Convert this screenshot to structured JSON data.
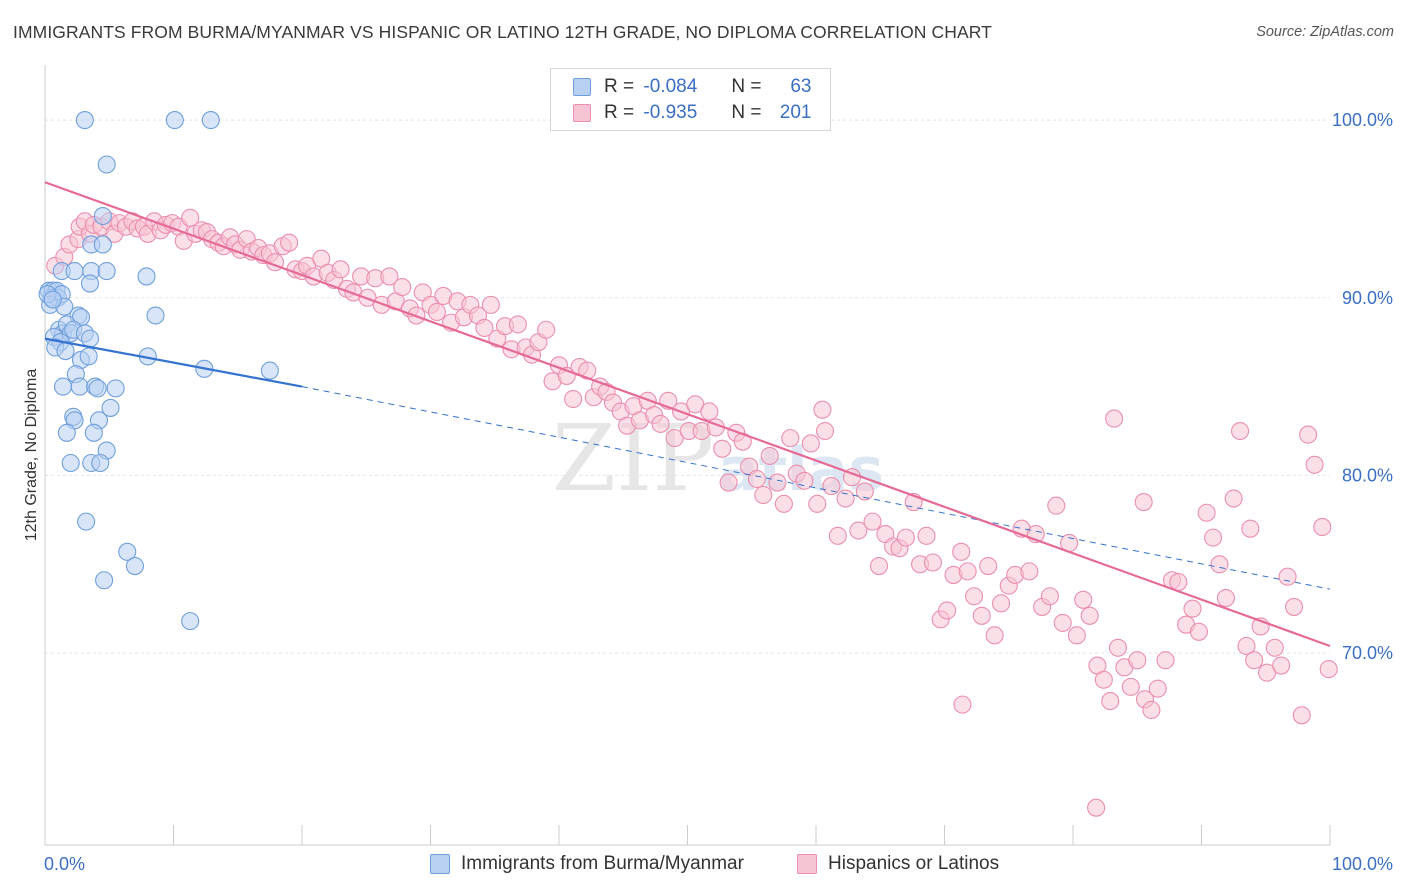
{
  "header": {
    "title": "IMMIGRANTS FROM BURMA/MYANMAR VS HISPANIC OR LATINO 12TH GRADE, NO DIPLOMA CORRELATION CHART",
    "source": "Source: ZipAtlas.com"
  },
  "legend_top": {
    "rows": [
      {
        "r_label": "R =",
        "r_value": "-0.084",
        "n_label": "N =",
        "n_value": "63"
      },
      {
        "r_label": "R =",
        "r_value": "-0.935",
        "n_label": "N =",
        "n_value": "201"
      }
    ]
  },
  "legend_bottom": {
    "items": [
      {
        "label": "Immigrants from Burma/Myanmar"
      },
      {
        "label": "Hispanics or Latinos"
      }
    ]
  },
  "watermark": {
    "part1": "ZIP",
    "part2": "atlas"
  },
  "colors": {
    "blue_fill": "#b8d0f2",
    "blue_stroke": "#6f9fdc",
    "blue_line": "#3473cf",
    "pink_fill": "#f7c4d4",
    "pink_stroke": "#ea8fae",
    "pink_line": "#e56a95",
    "tick_text": "#3b6fc4",
    "grid": "#e3e3e3"
  },
  "chart_data": {
    "type": "scatter",
    "title": "IMMIGRANTS FROM BURMA/MYANMAR VS HISPANIC OR LATINO 12TH GRADE, NO DIPLOMA CORRELATION CHART",
    "xlabel": "",
    "ylabel": "12th Grade, No Diploma",
    "xlim": [
      0,
      100
    ],
    "ylim": [
      59.2,
      103.1
    ],
    "x_tick_labels": [
      "0.0%",
      "100.0%"
    ],
    "y_ticks": [
      70,
      80,
      90,
      100
    ],
    "y_tick_labels": [
      "70.0%",
      "80.0%",
      "90.0%",
      "100.0%"
    ],
    "grid": true,
    "legend_position": "top-center",
    "series": [
      {
        "name": "Immigrants from Burma/Myanmar",
        "R": -0.084,
        "N": 63,
        "trend": {
          "x0": 0,
          "y0": 87.7,
          "x1": 20,
          "y1": 85.0,
          "dashed_to_x": 100,
          "dashed_to_y": 73.6
        },
        "points": [
          [
            3.1,
            100.0
          ],
          [
            10.1,
            100.0
          ],
          [
            12.9,
            100.0
          ],
          [
            4.8,
            97.5
          ],
          [
            4.5,
            94.6
          ],
          [
            3.6,
            93.0
          ],
          [
            4.5,
            93.0
          ],
          [
            1.3,
            91.5
          ],
          [
            2.3,
            91.5
          ],
          [
            3.6,
            91.5
          ],
          [
            4.8,
            91.5
          ],
          [
            3.5,
            90.8
          ],
          [
            7.9,
            91.2
          ],
          [
            0.3,
            90.4
          ],
          [
            0.6,
            90.4
          ],
          [
            0.9,
            90.4
          ],
          [
            0.5,
            90.0
          ],
          [
            1.0,
            90.0
          ],
          [
            1.3,
            90.2
          ],
          [
            0.4,
            89.6
          ],
          [
            1.5,
            89.5
          ],
          [
            8.6,
            89.0
          ],
          [
            2.6,
            89.0
          ],
          [
            2.8,
            88.9
          ],
          [
            1.1,
            88.2
          ],
          [
            1.4,
            88.0
          ],
          [
            1.7,
            88.5
          ],
          [
            2.0,
            88.0
          ],
          [
            2.2,
            88.2
          ],
          [
            3.1,
            88.0
          ],
          [
            0.7,
            87.8
          ],
          [
            1.2,
            87.5
          ],
          [
            3.5,
            87.7
          ],
          [
            0.8,
            87.2
          ],
          [
            1.6,
            87.0
          ],
          [
            2.8,
            86.5
          ],
          [
            3.4,
            86.7
          ],
          [
            8.0,
            86.7
          ],
          [
            12.4,
            86.0
          ],
          [
            17.5,
            85.9
          ],
          [
            2.4,
            85.7
          ],
          [
            1.4,
            85.0
          ],
          [
            2.7,
            85.0
          ],
          [
            3.9,
            85.0
          ],
          [
            4.1,
            84.9
          ],
          [
            5.5,
            84.9
          ],
          [
            5.1,
            83.8
          ],
          [
            2.2,
            83.3
          ],
          [
            2.3,
            83.1
          ],
          [
            4.2,
            83.1
          ],
          [
            1.7,
            82.4
          ],
          [
            3.8,
            82.4
          ],
          [
            4.8,
            81.4
          ],
          [
            2.0,
            80.7
          ],
          [
            3.6,
            80.7
          ],
          [
            4.3,
            80.7
          ],
          [
            3.2,
            77.4
          ],
          [
            6.4,
            75.7
          ],
          [
            7.0,
            74.9
          ],
          [
            4.6,
            74.1
          ],
          [
            11.3,
            71.8
          ],
          [
            0.2,
            90.2
          ],
          [
            0.6,
            89.9
          ]
        ]
      },
      {
        "name": "Hispanics or Latinos",
        "R": -0.935,
        "N": 201,
        "trend": {
          "x0": 0,
          "y0": 96.5,
          "x1": 100,
          "y1": 70.4
        },
        "points": [
          [
            0.8,
            91.8
          ],
          [
            1.5,
            92.3
          ],
          [
            1.9,
            93.0
          ],
          [
            2.6,
            93.3
          ],
          [
            2.7,
            94.0
          ],
          [
            3.1,
            94.3
          ],
          [
            3.5,
            93.6
          ],
          [
            3.8,
            94.1
          ],
          [
            4.4,
            94.0
          ],
          [
            5.0,
            94.3
          ],
          [
            5.4,
            93.6
          ],
          [
            5.8,
            94.2
          ],
          [
            6.3,
            94.0
          ],
          [
            6.8,
            94.3
          ],
          [
            7.2,
            93.9
          ],
          [
            7.7,
            94.0
          ],
          [
            8.0,
            93.6
          ],
          [
            8.5,
            94.3
          ],
          [
            9.0,
            93.8
          ],
          [
            9.4,
            94.1
          ],
          [
            9.9,
            94.2
          ],
          [
            10.4,
            94.0
          ],
          [
            10.8,
            93.2
          ],
          [
            11.3,
            94.5
          ],
          [
            11.7,
            93.6
          ],
          [
            12.2,
            93.8
          ],
          [
            12.6,
            93.7
          ],
          [
            13.0,
            93.3
          ],
          [
            13.5,
            93.1
          ],
          [
            13.9,
            92.9
          ],
          [
            14.4,
            93.4
          ],
          [
            14.8,
            93.0
          ],
          [
            15.2,
            92.7
          ],
          [
            15.7,
            93.3
          ],
          [
            16.1,
            92.6
          ],
          [
            16.6,
            92.8
          ],
          [
            17.0,
            92.4
          ],
          [
            17.5,
            92.5
          ],
          [
            17.9,
            92.0
          ],
          [
            18.5,
            92.9
          ],
          [
            19.0,
            93.1
          ],
          [
            19.5,
            91.6
          ],
          [
            20.0,
            91.5
          ],
          [
            20.4,
            91.8
          ],
          [
            20.9,
            91.2
          ],
          [
            21.5,
            92.2
          ],
          [
            22.0,
            91.4
          ],
          [
            22.5,
            91.0
          ],
          [
            23.0,
            91.6
          ],
          [
            23.5,
            90.5
          ],
          [
            24.0,
            90.3
          ],
          [
            24.6,
            91.2
          ],
          [
            25.1,
            90.0
          ],
          [
            25.7,
            91.1
          ],
          [
            26.2,
            89.6
          ],
          [
            26.8,
            91.2
          ],
          [
            27.3,
            89.8
          ],
          [
            27.8,
            90.6
          ],
          [
            28.4,
            89.4
          ],
          [
            28.9,
            89.0
          ],
          [
            29.4,
            90.3
          ],
          [
            30.0,
            89.6
          ],
          [
            30.5,
            89.2
          ],
          [
            31.0,
            90.1
          ],
          [
            31.6,
            88.6
          ],
          [
            32.1,
            89.8
          ],
          [
            32.6,
            88.9
          ],
          [
            33.1,
            89.6
          ],
          [
            33.7,
            89.0
          ],
          [
            34.2,
            88.3
          ],
          [
            34.7,
            89.6
          ],
          [
            35.2,
            87.7
          ],
          [
            35.8,
            88.4
          ],
          [
            36.3,
            87.1
          ],
          [
            36.8,
            88.5
          ],
          [
            37.4,
            87.2
          ],
          [
            37.9,
            86.8
          ],
          [
            38.4,
            87.5
          ],
          [
            39.0,
            88.2
          ],
          [
            39.5,
            85.3
          ],
          [
            40.0,
            86.2
          ],
          [
            40.6,
            85.6
          ],
          [
            41.1,
            84.3
          ],
          [
            41.6,
            86.1
          ],
          [
            42.2,
            85.9
          ],
          [
            42.7,
            84.4
          ],
          [
            43.2,
            85.0
          ],
          [
            43.7,
            84.7
          ],
          [
            44.2,
            84.1
          ],
          [
            44.8,
            83.6
          ],
          [
            45.3,
            82.8
          ],
          [
            45.8,
            83.9
          ],
          [
            46.3,
            83.1
          ],
          [
            46.9,
            84.2
          ],
          [
            47.4,
            83.4
          ],
          [
            47.9,
            82.9
          ],
          [
            48.5,
            84.2
          ],
          [
            49.0,
            82.1
          ],
          [
            49.5,
            83.6
          ],
          [
            50.1,
            82.5
          ],
          [
            50.6,
            84.0
          ],
          [
            51.1,
            82.5
          ],
          [
            51.7,
            83.6
          ],
          [
            52.2,
            82.7
          ],
          [
            52.7,
            81.5
          ],
          [
            53.2,
            79.6
          ],
          [
            53.8,
            82.4
          ],
          [
            54.3,
            81.9
          ],
          [
            54.8,
            80.5
          ],
          [
            55.4,
            79.8
          ],
          [
            55.9,
            78.9
          ],
          [
            56.4,
            81.1
          ],
          [
            57.0,
            79.6
          ],
          [
            57.5,
            78.4
          ],
          [
            58.0,
            82.1
          ],
          [
            58.5,
            80.1
          ],
          [
            59.1,
            79.7
          ],
          [
            59.6,
            81.8
          ],
          [
            60.1,
            78.4
          ],
          [
            60.7,
            82.5
          ],
          [
            61.2,
            79.4
          ],
          [
            61.7,
            76.6
          ],
          [
            62.3,
            78.7
          ],
          [
            62.8,
            79.9
          ],
          [
            63.3,
            76.9
          ],
          [
            63.8,
            79.1
          ],
          [
            64.4,
            77.4
          ],
          [
            64.9,
            74.9
          ],
          [
            65.4,
            76.7
          ],
          [
            66.0,
            76.0
          ],
          [
            66.5,
            75.9
          ],
          [
            67.0,
            76.5
          ],
          [
            67.6,
            78.5
          ],
          [
            68.1,
            75.0
          ],
          [
            68.6,
            76.6
          ],
          [
            69.1,
            75.1
          ],
          [
            69.7,
            71.9
          ],
          [
            70.2,
            72.4
          ],
          [
            70.7,
            74.4
          ],
          [
            71.3,
            75.7
          ],
          [
            71.8,
            74.6
          ],
          [
            72.3,
            73.2
          ],
          [
            72.9,
            72.1
          ],
          [
            73.4,
            74.9
          ],
          [
            73.9,
            71.0
          ],
          [
            74.4,
            72.8
          ],
          [
            75.0,
            73.8
          ],
          [
            75.5,
            74.4
          ],
          [
            76.0,
            77.0
          ],
          [
            76.6,
            74.6
          ],
          [
            77.1,
            76.7
          ],
          [
            77.6,
            72.6
          ],
          [
            78.2,
            73.2
          ],
          [
            78.7,
            78.3
          ],
          [
            79.2,
            71.7
          ],
          [
            79.7,
            76.2
          ],
          [
            80.3,
            71.0
          ],
          [
            80.8,
            73.0
          ],
          [
            81.3,
            72.1
          ],
          [
            81.9,
            69.3
          ],
          [
            82.4,
            68.5
          ],
          [
            82.9,
            67.3
          ],
          [
            83.5,
            70.3
          ],
          [
            84.0,
            69.2
          ],
          [
            84.5,
            68.1
          ],
          [
            85.0,
            69.6
          ],
          [
            85.6,
            67.4
          ],
          [
            86.1,
            66.8
          ],
          [
            86.6,
            68.0
          ],
          [
            87.2,
            69.6
          ],
          [
            87.7,
            74.1
          ],
          [
            88.2,
            74.0
          ],
          [
            88.8,
            71.6
          ],
          [
            89.3,
            72.5
          ],
          [
            89.8,
            71.2
          ],
          [
            90.4,
            77.9
          ],
          [
            90.9,
            76.5
          ],
          [
            91.4,
            75.0
          ],
          [
            91.9,
            73.1
          ],
          [
            92.5,
            78.7
          ],
          [
            93.0,
            82.5
          ],
          [
            93.5,
            70.4
          ],
          [
            94.1,
            69.6
          ],
          [
            94.6,
            71.5
          ],
          [
            95.1,
            68.9
          ],
          [
            95.7,
            70.3
          ],
          [
            96.2,
            69.3
          ],
          [
            96.7,
            74.3
          ],
          [
            97.2,
            72.6
          ],
          [
            97.8,
            66.5
          ],
          [
            98.3,
            82.3
          ],
          [
            98.8,
            80.6
          ],
          [
            99.4,
            77.1
          ],
          [
            99.9,
            69.1
          ],
          [
            83.2,
            83.2
          ],
          [
            85.5,
            78.5
          ],
          [
            93.8,
            77.0
          ],
          [
            81.8,
            61.3
          ],
          [
            71.4,
            67.1
          ],
          [
            60.5,
            83.7
          ]
        ]
      }
    ]
  }
}
